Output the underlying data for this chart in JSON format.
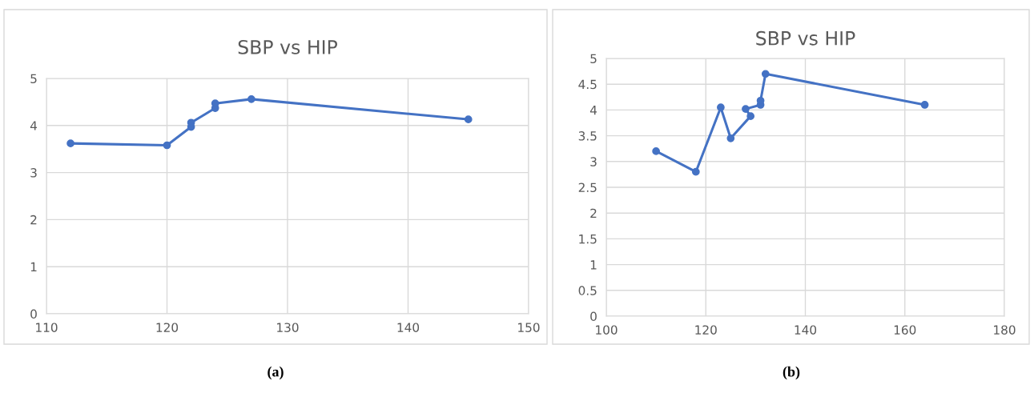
{
  "chart_data": [
    {
      "type": "line",
      "title": "SBP vs HIP",
      "x": [
        112,
        120,
        122,
        122,
        124,
        124,
        127,
        145
      ],
      "series": [
        {
          "color": "#4472c4",
          "values": [
            3.62,
            3.58,
            3.97,
            4.06,
            4.37,
            4.47,
            4.56,
            4.13
          ]
        }
      ],
      "xlim": [
        110,
        150
      ],
      "xticks": [
        110,
        120,
        130,
        140,
        150
      ],
      "ylim": [
        0,
        5
      ],
      "yticks": [
        0,
        1,
        2,
        3,
        4,
        5
      ],
      "grid": true,
      "marker": "circle",
      "line_style": "solid",
      "annotations": [
        "(a)"
      ]
    },
    {
      "type": "line",
      "title": "SBP vs HIP",
      "x": [
        110,
        118,
        123,
        125,
        129,
        128,
        131,
        131,
        132,
        164
      ],
      "series": [
        {
          "color": "#4472c4",
          "values": [
            3.2,
            2.8,
            4.05,
            3.45,
            3.88,
            4.02,
            4.1,
            4.18,
            4.7,
            4.1
          ]
        }
      ],
      "xlim": [
        100,
        180
      ],
      "xticks": [
        100,
        120,
        140,
        160,
        180
      ],
      "ylim": [
        0,
        5
      ],
      "yticks": [
        0,
        0.5,
        1,
        1.5,
        2,
        2.5,
        3,
        3.5,
        4,
        4.5,
        5
      ],
      "grid": true,
      "marker": "circle",
      "line_style": "solid",
      "annotations": [
        "(b)"
      ]
    }
  ]
}
